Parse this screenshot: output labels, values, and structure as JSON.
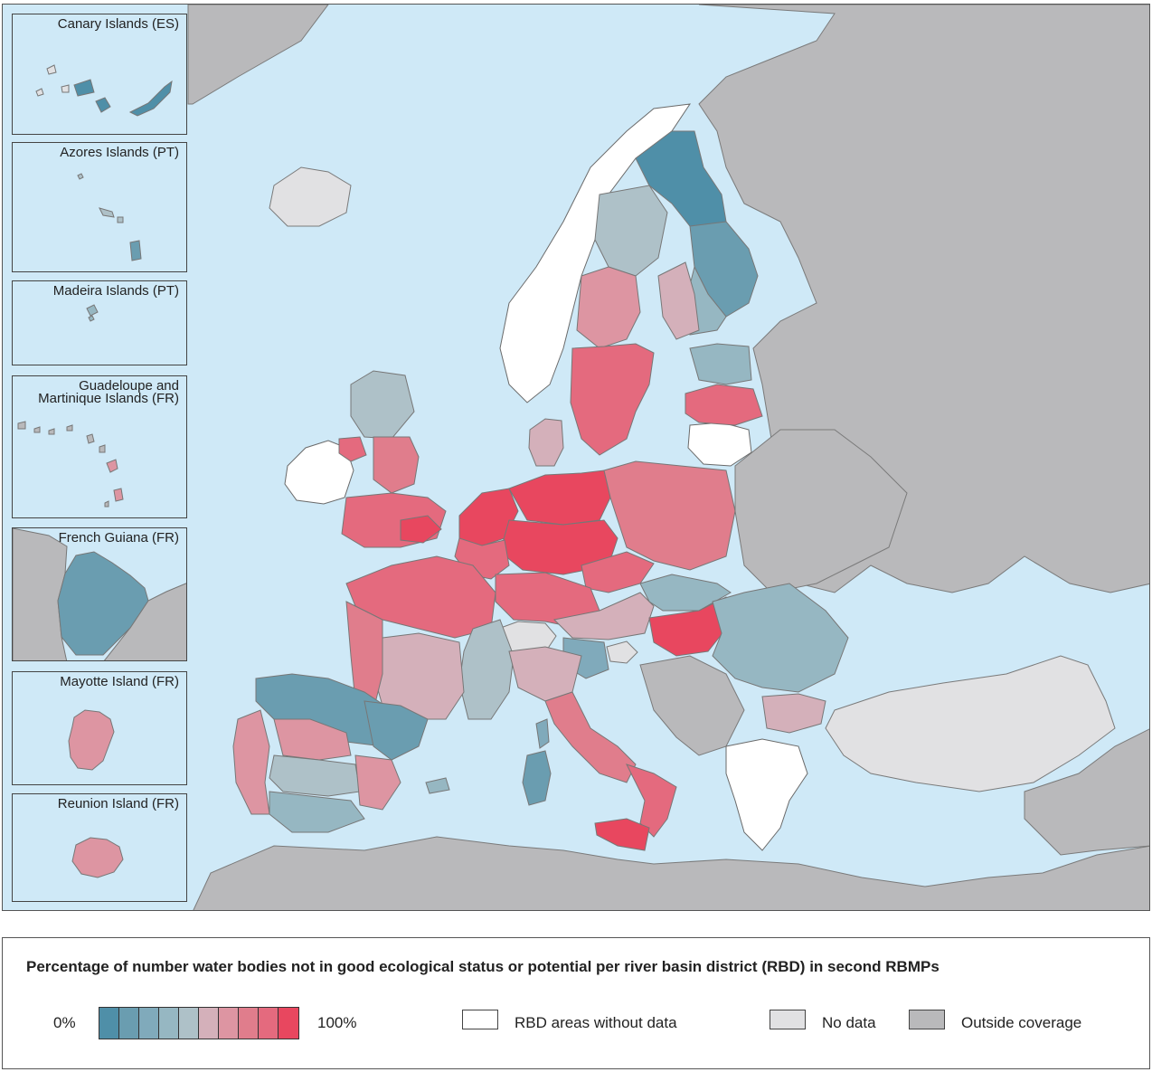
{
  "colors": {
    "sea": "#cfe9f7",
    "outside": "#b9b9bb",
    "no_data": "#e1e1e3",
    "without_data": "#ffffff",
    "border": "#666666"
  },
  "scale": [
    "#4f8fa8",
    "#6a9db0",
    "#80aabb",
    "#96b7c2",
    "#aec1c8",
    "#d4b0ba",
    "#dd95a2",
    "#e07d8c",
    "#e46a7e",
    "#e8475f"
  ],
  "insets": [
    {
      "label": "Canary Islands (ES)"
    },
    {
      "label": "Azores Islands (PT)"
    },
    {
      "label": "Madeira Islands (PT)"
    },
    {
      "label": "Guadeloupe and\nMartinique Islands (FR)"
    },
    {
      "label": "French Guiana (FR)"
    },
    {
      "label": "Mayotte Island (FR)"
    },
    {
      "label": "Reunion Island (FR)"
    }
  ],
  "legend": {
    "title": "Percentage of number water bodies not in good ecological status or potential per river basin district (RBD) in second RBMPs",
    "min_label": "0%",
    "max_label": "100%",
    "without_data_label": "RBD areas without data",
    "no_data_label": "No data",
    "outside_label": "Outside coverage"
  }
}
